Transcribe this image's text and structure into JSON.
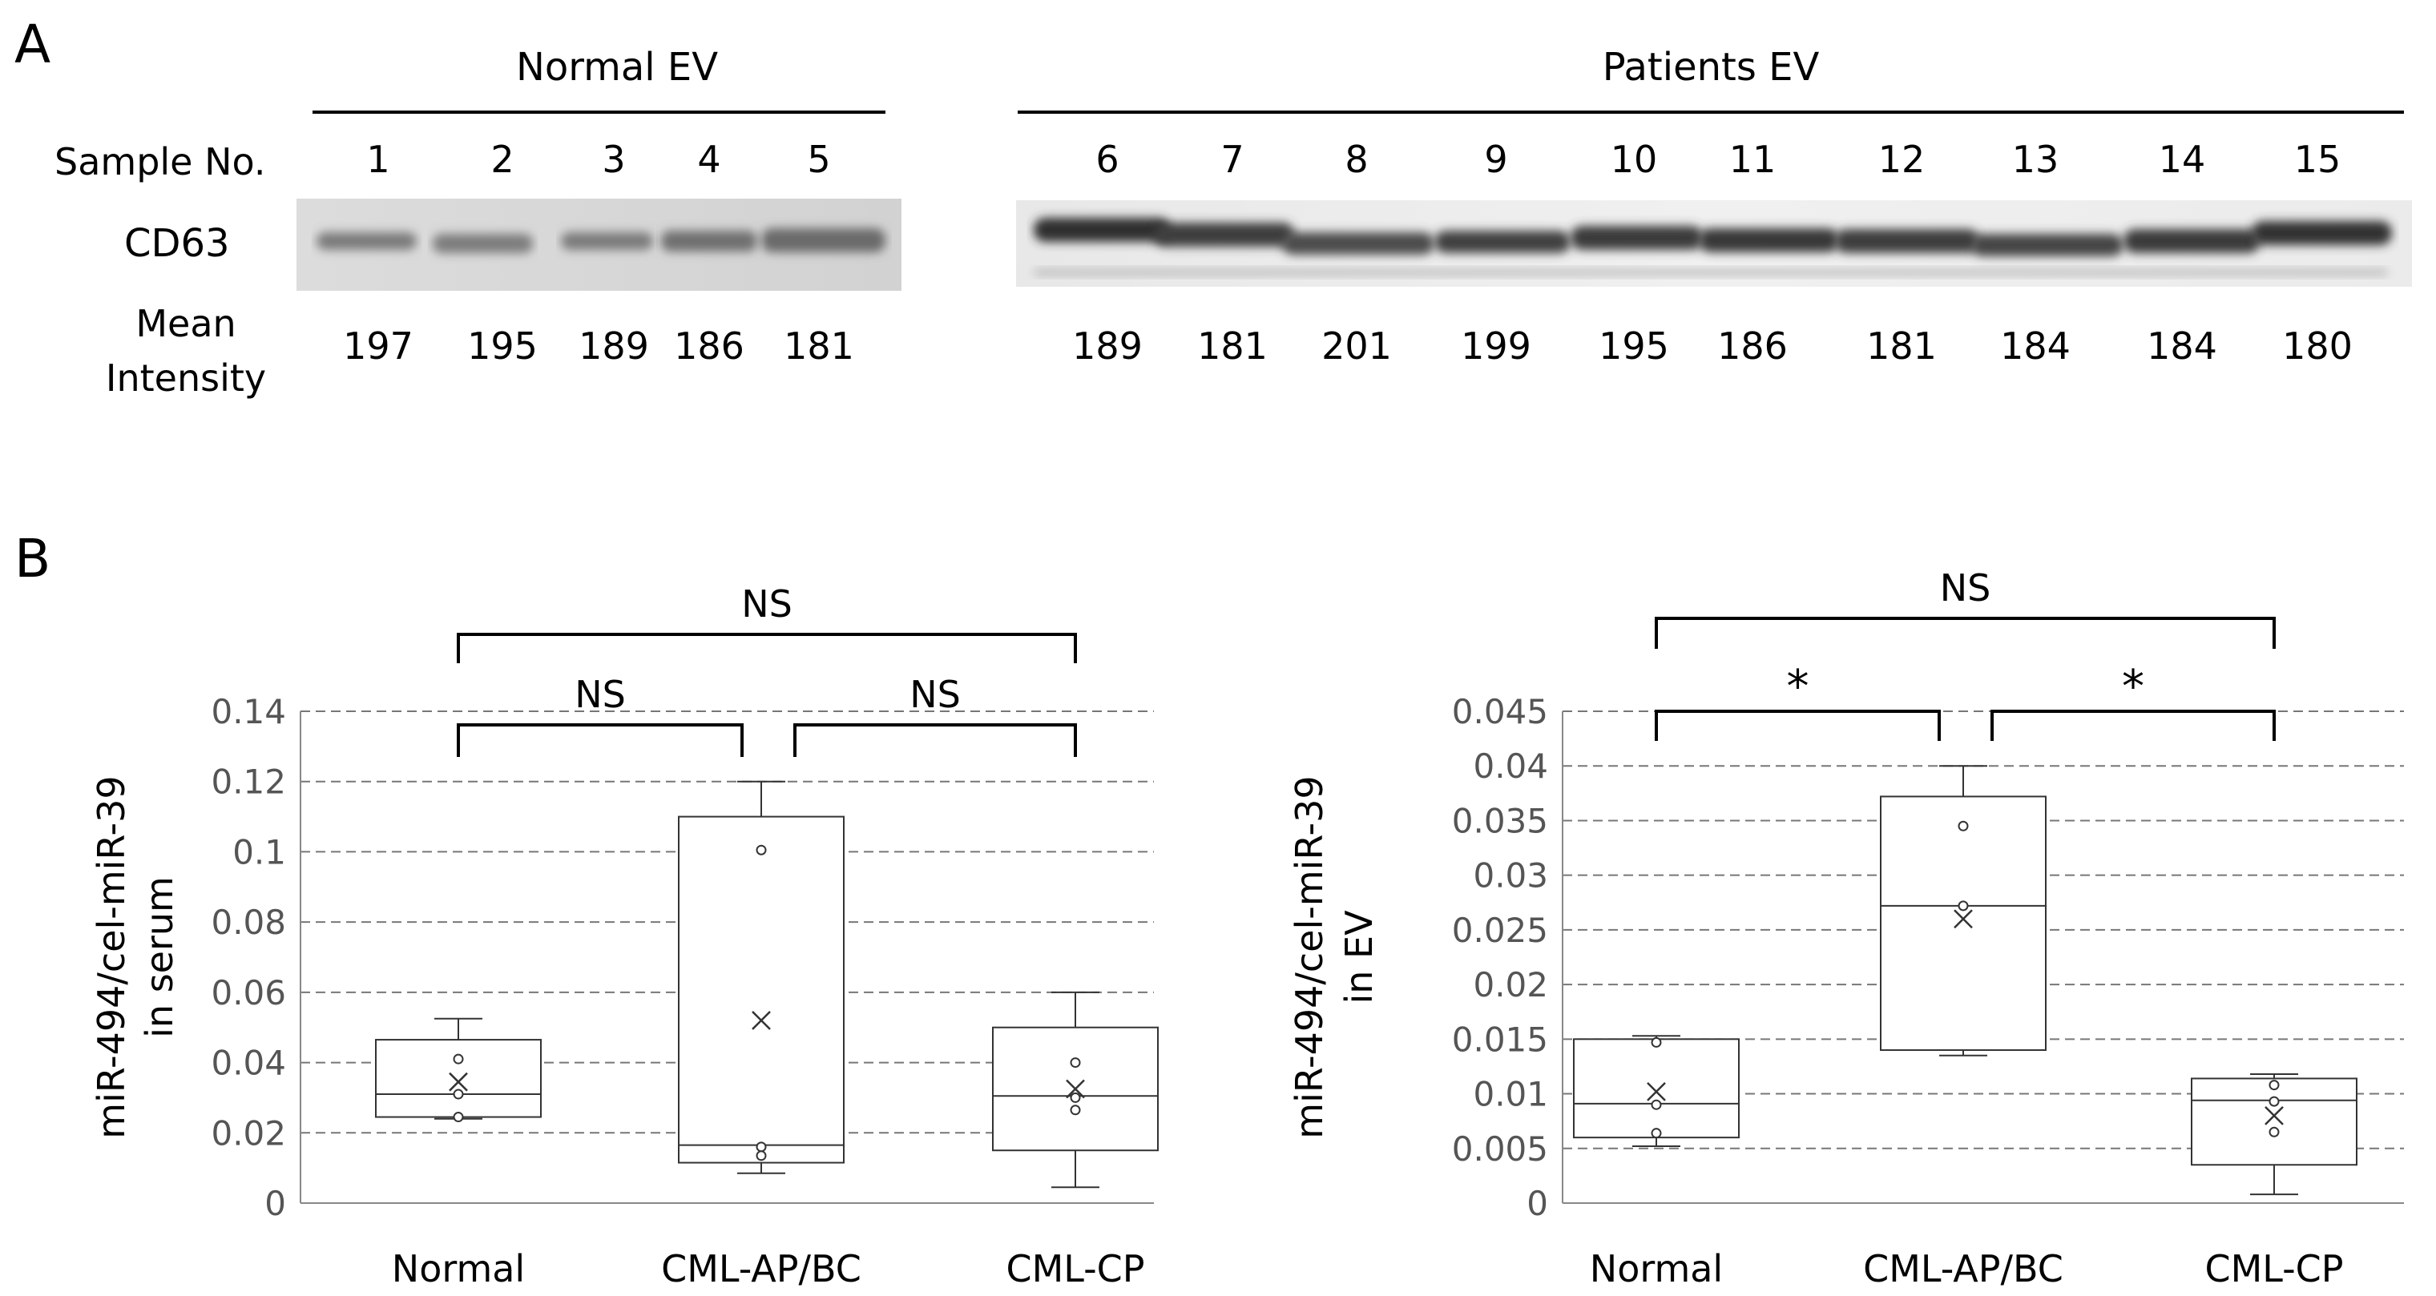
{
  "panel_a": {
    "letter": "A",
    "normal_group_label": "Normal EV",
    "patients_group_label": "Patients EV",
    "sample_label": "Sample No.",
    "marker_label": "CD63",
    "intensity_label_line1": "Mean",
    "intensity_label_line2": "Intensity",
    "normal_samples": [
      {
        "no": "1",
        "intensity": "197"
      },
      {
        "no": "2",
        "intensity": "195"
      },
      {
        "no": "3",
        "intensity": "189"
      },
      {
        "no": "4",
        "intensity": "186"
      },
      {
        "no": "5",
        "intensity": "181"
      }
    ],
    "patient_samples": [
      {
        "no": "6",
        "intensity": "189"
      },
      {
        "no": "7",
        "intensity": "181"
      },
      {
        "no": "8",
        "intensity": "201"
      },
      {
        "no": "9",
        "intensity": "199"
      },
      {
        "no": "10",
        "intensity": "195"
      },
      {
        "no": "11",
        "intensity": "186"
      },
      {
        "no": "12",
        "intensity": "181"
      },
      {
        "no": "13",
        "intensity": "184"
      },
      {
        "no": "14",
        "intensity": "184"
      },
      {
        "no": "15",
        "intensity": "180"
      }
    ]
  },
  "panel_b": {
    "letter": "B"
  },
  "chart_data": [
    {
      "type": "box",
      "ylabel_line1": "miR-494/cel-miR-39",
      "ylabel_line2": "in serum",
      "ylim": [
        0,
        0.14
      ],
      "yticks": [
        "0",
        "0.02",
        "0.04",
        "0.06",
        "0.08",
        "0.1",
        "0.12",
        "0.14"
      ],
      "grid": "dashed horizontal",
      "categories": [
        "Normal",
        "CML-AP/BC",
        "CML-CP"
      ],
      "groups": [
        {
          "name": "Normal",
          "whisker_low": 0.024,
          "q1": 0.0245,
          "median": 0.031,
          "q3": 0.0465,
          "whisker_high": 0.0525,
          "mean": 0.0345,
          "points": [
            0.041,
            0.031,
            0.0245
          ]
        },
        {
          "name": "CML-AP/BC",
          "whisker_low": 0.0085,
          "q1": 0.0115,
          "median": 0.0165,
          "q3": 0.11,
          "whisker_high": 0.12,
          "mean": 0.052,
          "points": [
            0.1005,
            0.016,
            0.0135
          ]
        },
        {
          "name": "CML-CP",
          "whisker_low": 0.0045,
          "q1": 0.015,
          "median": 0.0305,
          "q3": 0.05,
          "whisker_high": 0.06,
          "mean": 0.0325,
          "points": [
            0.04,
            0.03,
            0.0265
          ]
        }
      ],
      "significance": [
        {
          "pair": [
            "Normal",
            "CML-AP/BC"
          ],
          "label": "NS"
        },
        {
          "pair": [
            "CML-AP/BC",
            "CML-CP"
          ],
          "label": "NS"
        },
        {
          "pair": [
            "Normal",
            "CML-CP"
          ],
          "label": "NS"
        }
      ]
    },
    {
      "type": "box",
      "ylabel_line1": "miR-494/cel-miR-39",
      "ylabel_line2": "in EV",
      "ylim": [
        0,
        0.045
      ],
      "yticks": [
        "0",
        "0.005",
        "0.01",
        "0.015",
        "0.02",
        "0.025",
        "0.03",
        "0.035",
        "0.04",
        "0.045"
      ],
      "grid": "dashed horizontal",
      "categories": [
        "Normal",
        "CML-AP/BC",
        "CML-CP"
      ],
      "groups": [
        {
          "name": "Normal",
          "whisker_low": 0.0052,
          "q1": 0.006,
          "median": 0.0091,
          "q3": 0.015,
          "whisker_high": 0.0153,
          "mean": 0.0102,
          "points": [
            0.0147,
            0.009,
            0.0064
          ]
        },
        {
          "name": "CML-AP/BC",
          "whisker_low": 0.0135,
          "q1": 0.014,
          "median": 0.0272,
          "q3": 0.0372,
          "whisker_high": 0.04,
          "mean": 0.026,
          "points": [
            0.0345,
            0.0272
          ]
        },
        {
          "name": "CML-CP",
          "whisker_low": 0.0008,
          "q1": 0.0035,
          "median": 0.0094,
          "q3": 0.0114,
          "whisker_high": 0.0118,
          "mean": 0.008,
          "points": [
            0.0108,
            0.0093,
            0.0065
          ]
        }
      ],
      "significance": [
        {
          "pair": [
            "Normal",
            "CML-AP/BC"
          ],
          "label": "*"
        },
        {
          "pair": [
            "CML-AP/BC",
            "CML-CP"
          ],
          "label": "*"
        },
        {
          "pair": [
            "Normal",
            "CML-CP"
          ],
          "label": "NS"
        }
      ]
    }
  ]
}
